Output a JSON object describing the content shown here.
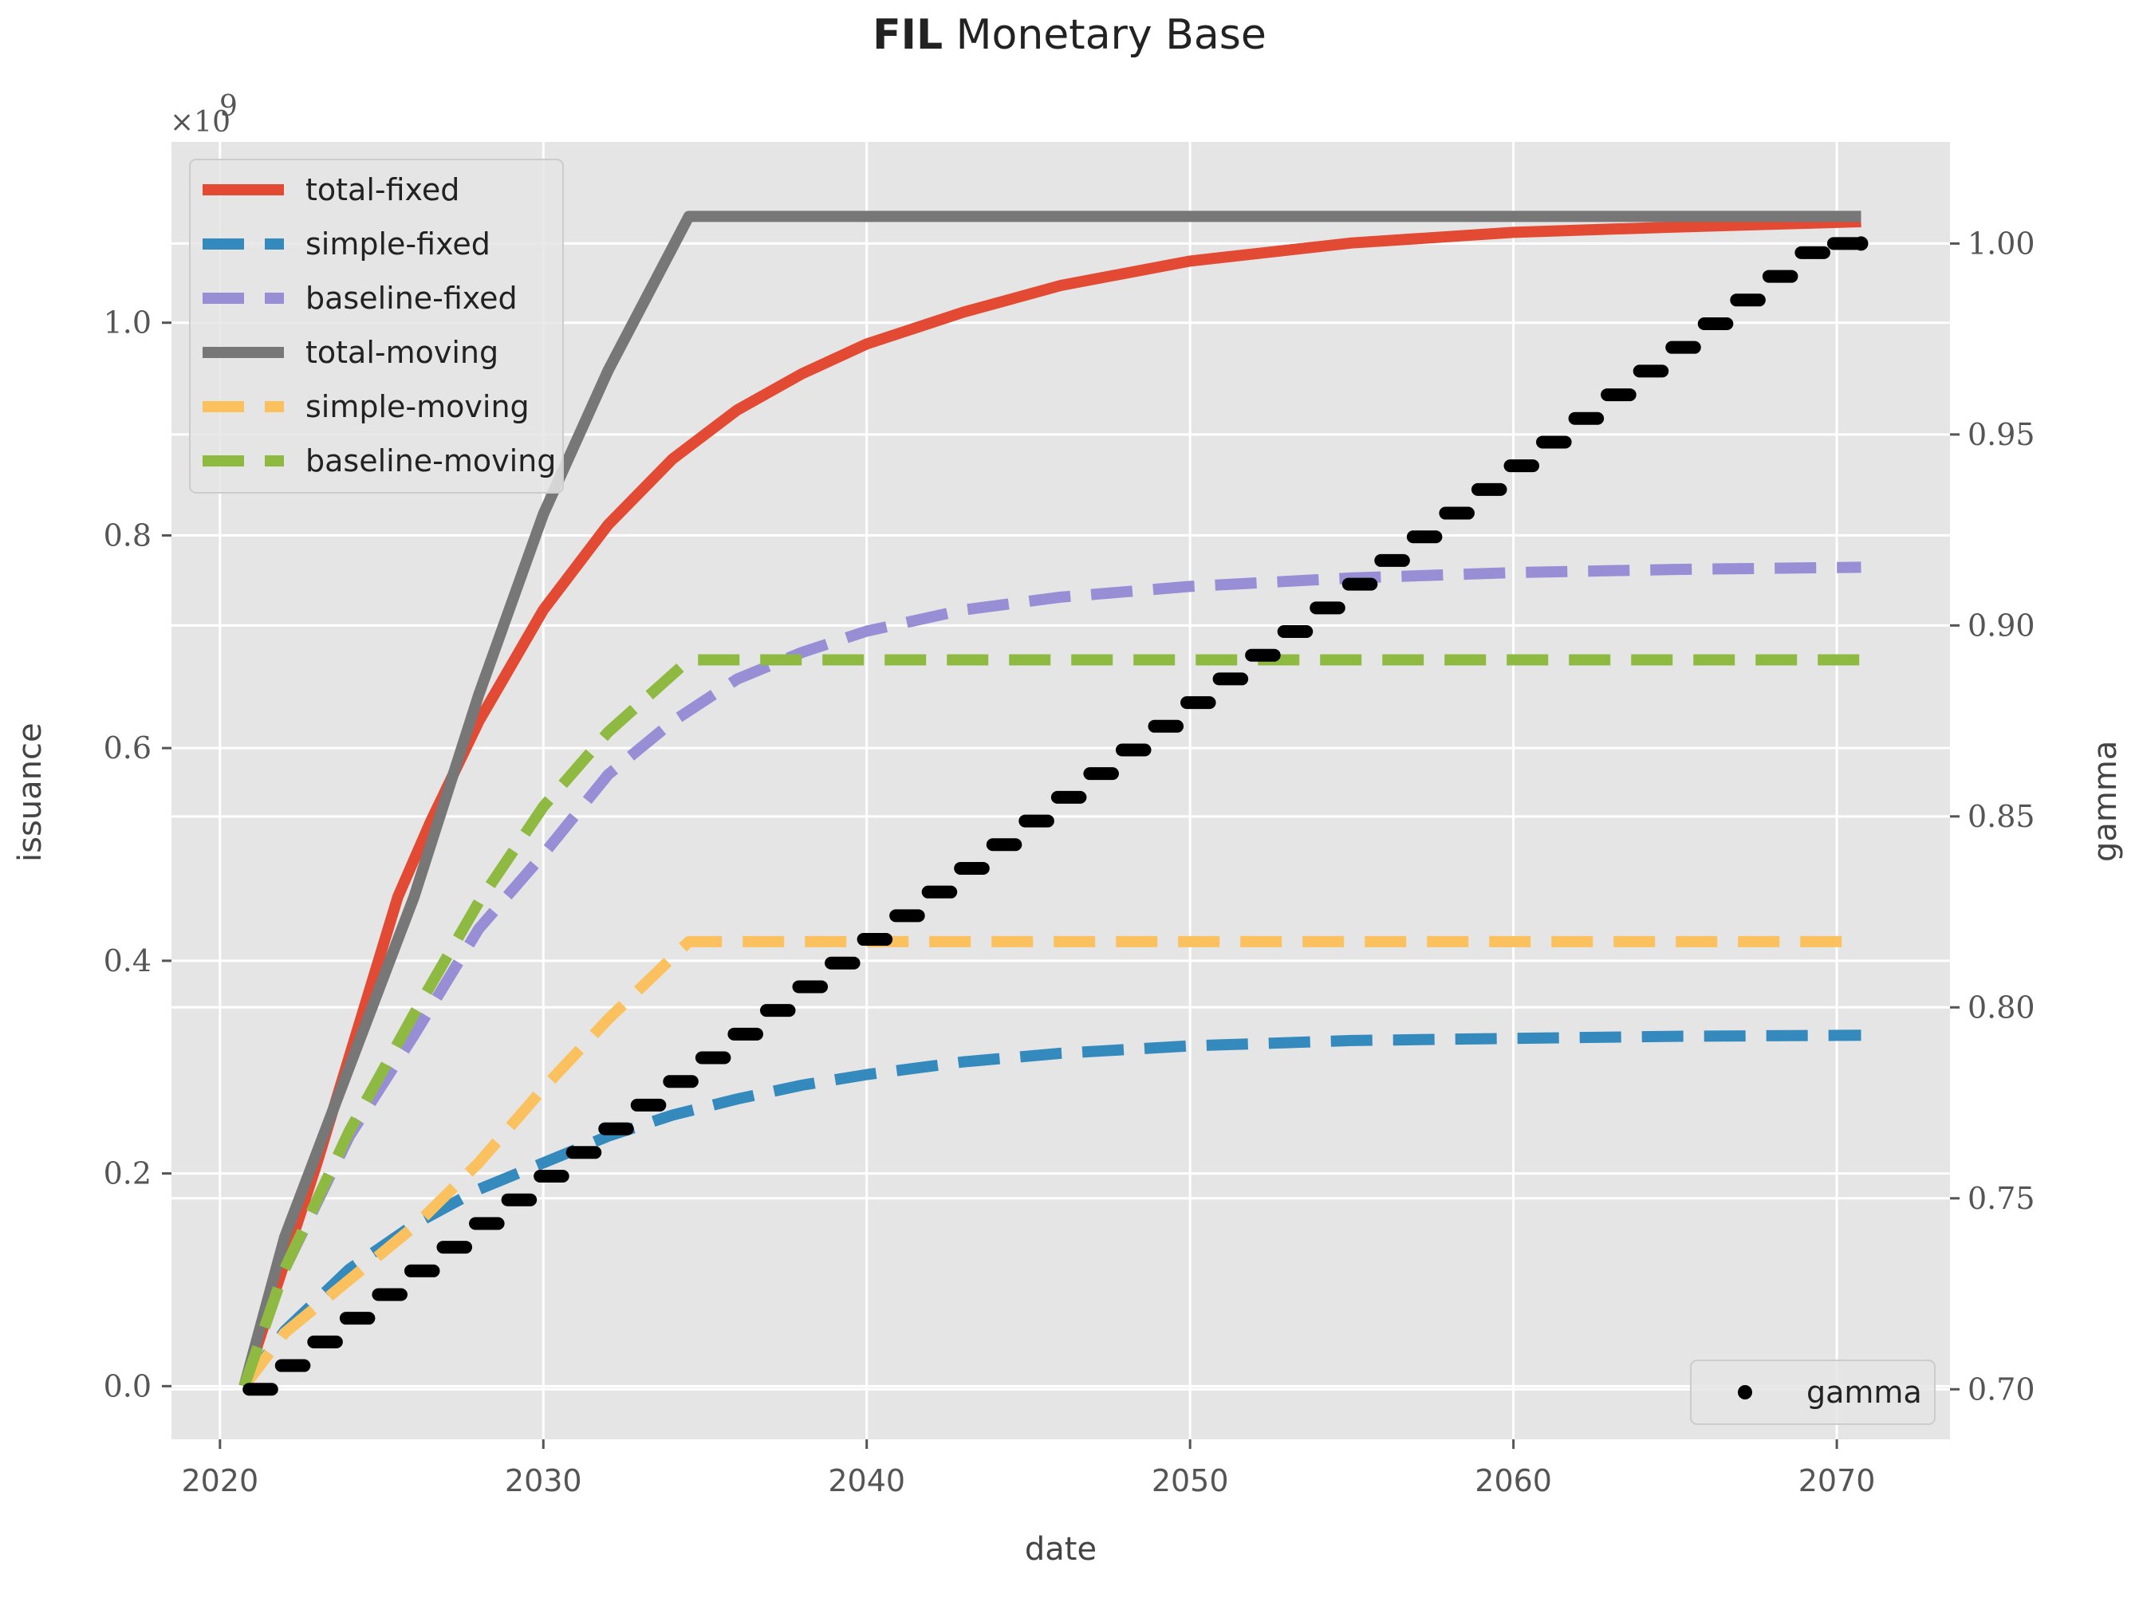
{
  "title_bold": "FIL",
  "title_rest": "Monetary Base",
  "chart_data": {
    "type": "line",
    "xlabel": "date",
    "ylabel": "issuance",
    "y2label": "gamma",
    "y_multiplier": "×10^9",
    "x_range": [
      2018.5,
      2073.5
    ],
    "y_range": [
      -0.05,
      1.17
    ],
    "y2_range": [
      0.6869,
      1.0266
    ],
    "x_ticks": [
      2020,
      2030,
      2040,
      2050,
      2060,
      2070
    ],
    "y_ticks": [
      0.0,
      0.2,
      0.4,
      0.6,
      0.8,
      1.0
    ],
    "y2_ticks": [
      0.7,
      0.75,
      0.8,
      0.85,
      0.9,
      0.95,
      1.0
    ],
    "background": "#e5e5e5",
    "grid": true,
    "legend_position": "top-left",
    "series": [
      {
        "name": "total-fixed",
        "style": "solid",
        "color": "#e24a33",
        "x": [
          2020.75,
          2023,
          2025.5,
          2026.5,
          2028,
          2030,
          2032,
          2034,
          2036,
          2038,
          2040,
          2043,
          2046,
          2050,
          2055,
          2060,
          2065,
          2070.75
        ],
        "y": [
          0.0,
          0.21,
          0.46,
          0.53,
          0.625,
          0.73,
          0.81,
          0.872,
          0.918,
          0.952,
          0.98,
          1.01,
          1.035,
          1.058,
          1.075,
          1.085,
          1.09,
          1.095
        ]
      },
      {
        "name": "simple-fixed",
        "style": "dashed",
        "color": "#348abd",
        "x": [
          2020.75,
          2022,
          2024,
          2026,
          2028,
          2030,
          2032,
          2034,
          2036,
          2038,
          2040,
          2043,
          2046,
          2050,
          2055,
          2060,
          2065,
          2070.75
        ],
        "y": [
          0.0,
          0.052,
          0.11,
          0.152,
          0.185,
          0.21,
          0.235,
          0.255,
          0.27,
          0.283,
          0.293,
          0.305,
          0.313,
          0.32,
          0.325,
          0.327,
          0.329,
          0.33
        ]
      },
      {
        "name": "baseline-fixed",
        "style": "dashed",
        "color": "#988ed5",
        "x": [
          2020.75,
          2022,
          2024,
          2026,
          2028,
          2030,
          2032,
          2034,
          2036,
          2038,
          2040,
          2043,
          2046,
          2050,
          2055,
          2060,
          2065,
          2070.75
        ],
        "y": [
          0.0,
          0.11,
          0.235,
          0.33,
          0.43,
          0.5,
          0.575,
          0.625,
          0.665,
          0.69,
          0.71,
          0.73,
          0.742,
          0.752,
          0.76,
          0.765,
          0.768,
          0.77
        ]
      },
      {
        "name": "total-moving",
        "style": "solid",
        "color": "#777777",
        "x": [
          2020.75,
          2022,
          2024,
          2026,
          2028,
          2030,
          2032,
          2034.5,
          2040,
          2050,
          2060,
          2070.75
        ],
        "y": [
          0.0,
          0.14,
          0.3,
          0.46,
          0.65,
          0.82,
          0.955,
          1.1,
          1.1,
          1.1,
          1.1,
          1.1
        ]
      },
      {
        "name": "simple-moving",
        "style": "dashed",
        "color": "#fbc15e",
        "x": [
          2020.75,
          2022,
          2024,
          2026,
          2028,
          2030,
          2032,
          2034.5,
          2040,
          2050,
          2060,
          2070.75
        ],
        "y": [
          0.0,
          0.05,
          0.1,
          0.15,
          0.21,
          0.28,
          0.345,
          0.418,
          0.418,
          0.418,
          0.418,
          0.418
        ]
      },
      {
        "name": "baseline-moving",
        "style": "dashed",
        "color": "#8eba42",
        "x": [
          2020.75,
          2022,
          2024,
          2026,
          2028,
          2030,
          2032,
          2034.5,
          2040,
          2050,
          2060,
          2070.75
        ],
        "y": [
          0.0,
          0.11,
          0.24,
          0.35,
          0.455,
          0.545,
          0.615,
          0.683,
          0.683,
          0.683,
          0.683,
          0.683
        ]
      }
    ],
    "gamma_series": {
      "name": "gamma",
      "style": "markers",
      "axis": "right",
      "color": "#000000",
      "x_start": 2020.75,
      "x_end": 2070.75,
      "step_years": 1.0,
      "y_start": 0.7,
      "y_step": 0.0062,
      "y_end": 1.0
    }
  }
}
